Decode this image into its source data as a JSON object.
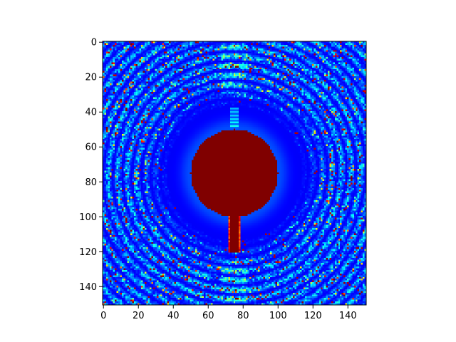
{
  "chart_data": {
    "type": "heatmap",
    "colormap": "jet",
    "title": "",
    "xlabel": "",
    "ylabel": "",
    "xlim": [
      0,
      151
    ],
    "ylim": [
      151,
      0
    ],
    "grid": false,
    "legend": "none",
    "colorbar": false,
    "x_ticks": [
      {
        "value": 0,
        "label": "0"
      },
      {
        "value": 20,
        "label": "20"
      },
      {
        "value": 40,
        "label": "40"
      },
      {
        "value": 60,
        "label": "60"
      },
      {
        "value": 80,
        "label": "80"
      },
      {
        "value": 100,
        "label": "100"
      },
      {
        "value": 120,
        "label": "120"
      },
      {
        "value": 140,
        "label": "140"
      }
    ],
    "y_ticks": [
      {
        "value": 0,
        "label": "0"
      },
      {
        "value": 20,
        "label": "20"
      },
      {
        "value": 40,
        "label": "40"
      },
      {
        "value": 60,
        "label": "60"
      },
      {
        "value": 80,
        "label": "80"
      },
      {
        "value": 100,
        "label": "100"
      },
      {
        "value": 120,
        "label": "120"
      },
      {
        "value": 140,
        "label": "140"
      }
    ],
    "grid_size": [
      151,
      151
    ],
    "features": {
      "saturated_disk": {
        "center_x": 75,
        "center_y": 75,
        "radius": 25,
        "value": 1.0
      },
      "stem": {
        "x_center": 75,
        "y_start": 97,
        "y_end": 120,
        "value": 1.0
      },
      "ring_pattern_center": {
        "x": 75,
        "y": 75
      },
      "background_value": 0.12
    }
  }
}
